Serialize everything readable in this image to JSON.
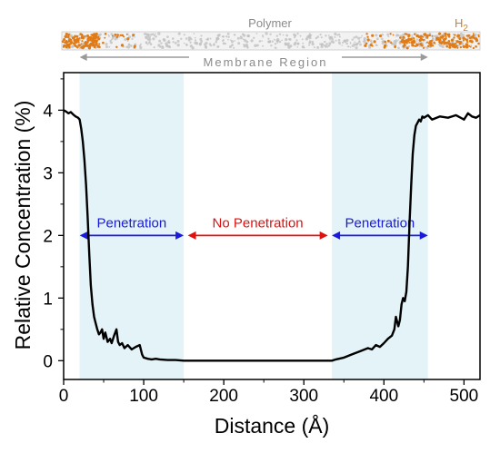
{
  "chart_data": {
    "type": "line",
    "xlabel": "Distance (Å)",
    "ylabel": "Relative Concentration (%)",
    "xlim": [
      0,
      520
    ],
    "ylim": [
      -0.3,
      4.6
    ],
    "xticks": [
      0,
      100,
      200,
      300,
      400,
      500
    ],
    "yticks": [
      0,
      1,
      2,
      3,
      4
    ],
    "grid": false,
    "series": [
      {
        "color": "#000000",
        "x": [
          0,
          3,
          6,
          9,
          12,
          15,
          18,
          20,
          22,
          24,
          26,
          28,
          30,
          32,
          34,
          36,
          38,
          40,
          42,
          44,
          46,
          48,
          50,
          52,
          55,
          58,
          60,
          63,
          66,
          68,
          70,
          73,
          76,
          80,
          85,
          90,
          95,
          98,
          100,
          105,
          110,
          115,
          120,
          130,
          140,
          150,
          200,
          250,
          300,
          335,
          340,
          350,
          360,
          370,
          380,
          385,
          390,
          395,
          400,
          405,
          410,
          413,
          415,
          418,
          420,
          422,
          424,
          426,
          428,
          430,
          432,
          434,
          436,
          438,
          440,
          442,
          444,
          446,
          448,
          450,
          455,
          460,
          470,
          480,
          490,
          500,
          505,
          510,
          515,
          520
        ],
        "y": [
          4.0,
          3.98,
          3.95,
          3.97,
          3.93,
          3.9,
          3.88,
          3.85,
          3.7,
          3.5,
          3.2,
          2.8,
          2.3,
          1.7,
          1.2,
          0.9,
          0.7,
          0.6,
          0.5,
          0.42,
          0.45,
          0.5,
          0.35,
          0.45,
          0.3,
          0.35,
          0.28,
          0.4,
          0.5,
          0.3,
          0.25,
          0.28,
          0.2,
          0.25,
          0.18,
          0.22,
          0.25,
          0.1,
          0.05,
          0.03,
          0.02,
          0.03,
          0.02,
          0.01,
          0.01,
          0.0,
          0.0,
          0.0,
          0.0,
          0.0,
          0.02,
          0.05,
          0.1,
          0.15,
          0.2,
          0.18,
          0.25,
          0.22,
          0.28,
          0.35,
          0.4,
          0.5,
          0.7,
          0.55,
          0.65,
          0.9,
          1.0,
          0.95,
          1.1,
          1.5,
          2.2,
          2.8,
          3.3,
          3.6,
          3.75,
          3.8,
          3.85,
          3.82,
          3.9,
          3.88,
          3.92,
          3.85,
          3.9,
          3.88,
          3.92,
          3.85,
          3.95,
          3.9,
          3.88,
          3.92
        ]
      }
    ],
    "shaded_regions": [
      {
        "x": [
          20,
          150
        ],
        "color": "#e3f3f8"
      },
      {
        "x": [
          335,
          455
        ],
        "color": "#e3f3f8"
      }
    ],
    "annotations": [
      {
        "text": "Penetration",
        "y": 2,
        "x_range": [
          20,
          150
        ],
        "color": "#1a1adc"
      },
      {
        "text": "No Penetration",
        "y": 2,
        "x_range": [
          155,
          330
        ],
        "color": "#e01010"
      },
      {
        "text": "Penetration",
        "y": 2,
        "x_range": [
          335,
          455
        ],
        "color": "#1a1adc"
      }
    ],
    "header_strip": {
      "polymer_label": "Polymer",
      "h2_label_main": "H",
      "h2_label_sub": "2",
      "membrane_label": "Membrane Region",
      "membrane_x_range": [
        20,
        455
      ],
      "particle_color": "#e07b16",
      "polymer_color": "#bdbdbd"
    }
  }
}
